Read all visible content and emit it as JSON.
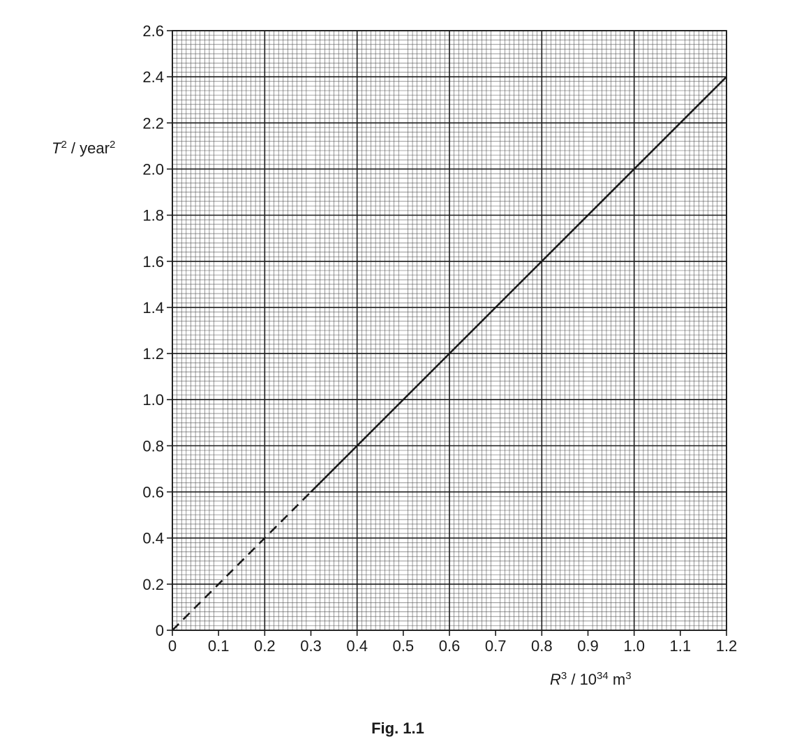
{
  "chart_data": {
    "type": "line",
    "caption": "Fig. 1.1",
    "xlabel": {
      "symbol": "R",
      "symbol_sup": "3",
      "unit_prefix": " / 10",
      "unit_exp": "34",
      "unit": " m",
      "unit_sup": "3"
    },
    "ylabel": {
      "symbol": "T",
      "symbol_sup": "2",
      "unit": " / year",
      "unit_sup": "2"
    },
    "xlim": [
      0,
      1.2
    ],
    "ylim": [
      0,
      2.6
    ],
    "x_ticks": [
      0,
      0.1,
      0.2,
      0.3,
      0.4,
      0.5,
      0.6,
      0.7,
      0.8,
      0.9,
      1.0,
      1.1,
      1.2
    ],
    "x_tick_labels": [
      "0",
      "0.1",
      "0.2",
      "0.3",
      "0.4",
      "0.5",
      "0.6",
      "0.7",
      "0.8",
      "0.9",
      "1.0",
      "1.1",
      "1.2"
    ],
    "y_ticks": [
      0,
      0.2,
      0.4,
      0.6,
      0.8,
      1.0,
      1.2,
      1.4,
      1.6,
      1.8,
      2.0,
      2.2,
      2.4,
      2.6
    ],
    "y_tick_labels": [
      "0",
      "0.2",
      "0.4",
      "0.6",
      "0.8",
      "1.0",
      "1.2",
      "1.4",
      "1.6",
      "1.8",
      "2.0",
      "2.2",
      "2.4",
      "2.6"
    ],
    "grid": true,
    "grid_minor_divisions": 10,
    "series": [
      {
        "style": "dashed",
        "x": [
          0,
          0.3
        ],
        "y": [
          0,
          0.6
        ]
      },
      {
        "style": "solid",
        "x": [
          0.3,
          1.2
        ],
        "y": [
          0.6,
          2.4
        ]
      }
    ]
  }
}
